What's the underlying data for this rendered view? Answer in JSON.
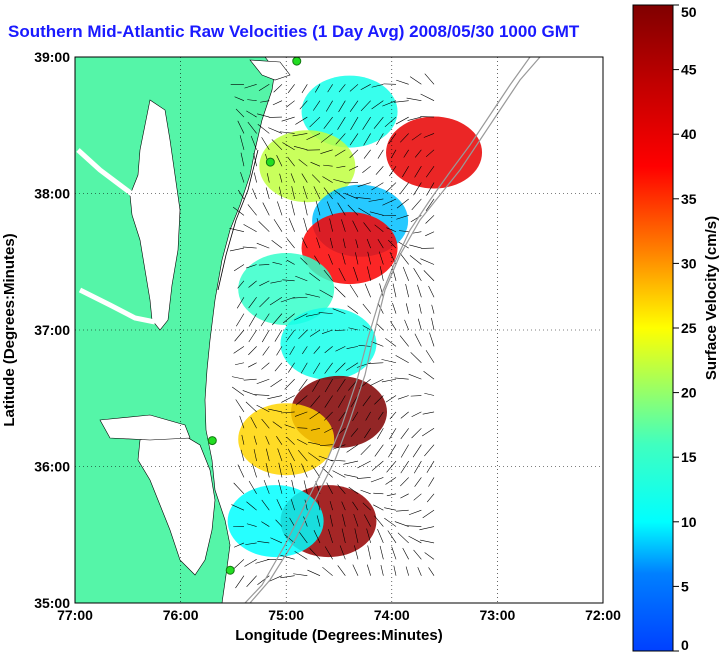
{
  "chart_data": {
    "type": "heatmap",
    "title": "Southern Mid-Atlantic Raw Velocities (1 Day Avg) 2008/05/30 1000 GMT",
    "xlabel": "Longitude (Degrees:Minutes)",
    "ylabel": "Latitude (Degrees:Minutes)",
    "x_ticks": [
      "77:00",
      "76:00",
      "75:00",
      "74:00",
      "73:00",
      "72:00"
    ],
    "y_ticks": [
      "39:00",
      "38:00",
      "37:00",
      "36:00",
      "35:00"
    ],
    "xlim": [
      -77,
      -72
    ],
    "ylim": [
      35,
      39
    ],
    "grid": true,
    "colorbar": {
      "label": "Surface Velocity (cm/s)",
      "min": 0,
      "max": 50,
      "ticks": [
        0,
        5,
        10,
        15,
        20,
        25,
        30,
        35,
        40,
        45,
        50
      ]
    },
    "velocity_regions": [
      {
        "lon": -74.4,
        "lat": 38.6,
        "speed": 12
      },
      {
        "lon": -73.6,
        "lat": 38.3,
        "speed": 40
      },
      {
        "lon": -74.8,
        "lat": 38.2,
        "speed": 22
      },
      {
        "lon": -74.3,
        "lat": 37.8,
        "speed": 8
      },
      {
        "lon": -74.4,
        "lat": 37.6,
        "speed": 38
      },
      {
        "lon": -75.0,
        "lat": 37.3,
        "speed": 15
      },
      {
        "lon": -74.6,
        "lat": 36.9,
        "speed": 12
      },
      {
        "lon": -74.5,
        "lat": 36.4,
        "speed": 50
      },
      {
        "lon": -75.0,
        "lat": 36.2,
        "speed": 27
      },
      {
        "lon": -74.6,
        "lat": 35.6,
        "speed": 48
      },
      {
        "lon": -75.1,
        "lat": 35.6,
        "speed": 10
      }
    ],
    "stations": [
      {
        "lon": -74.9,
        "lat": 38.97
      },
      {
        "lon": -75.15,
        "lat": 38.23
      },
      {
        "lon": -75.7,
        "lat": 36.19
      },
      {
        "lon": -75.53,
        "lat": 35.24
      }
    ]
  }
}
